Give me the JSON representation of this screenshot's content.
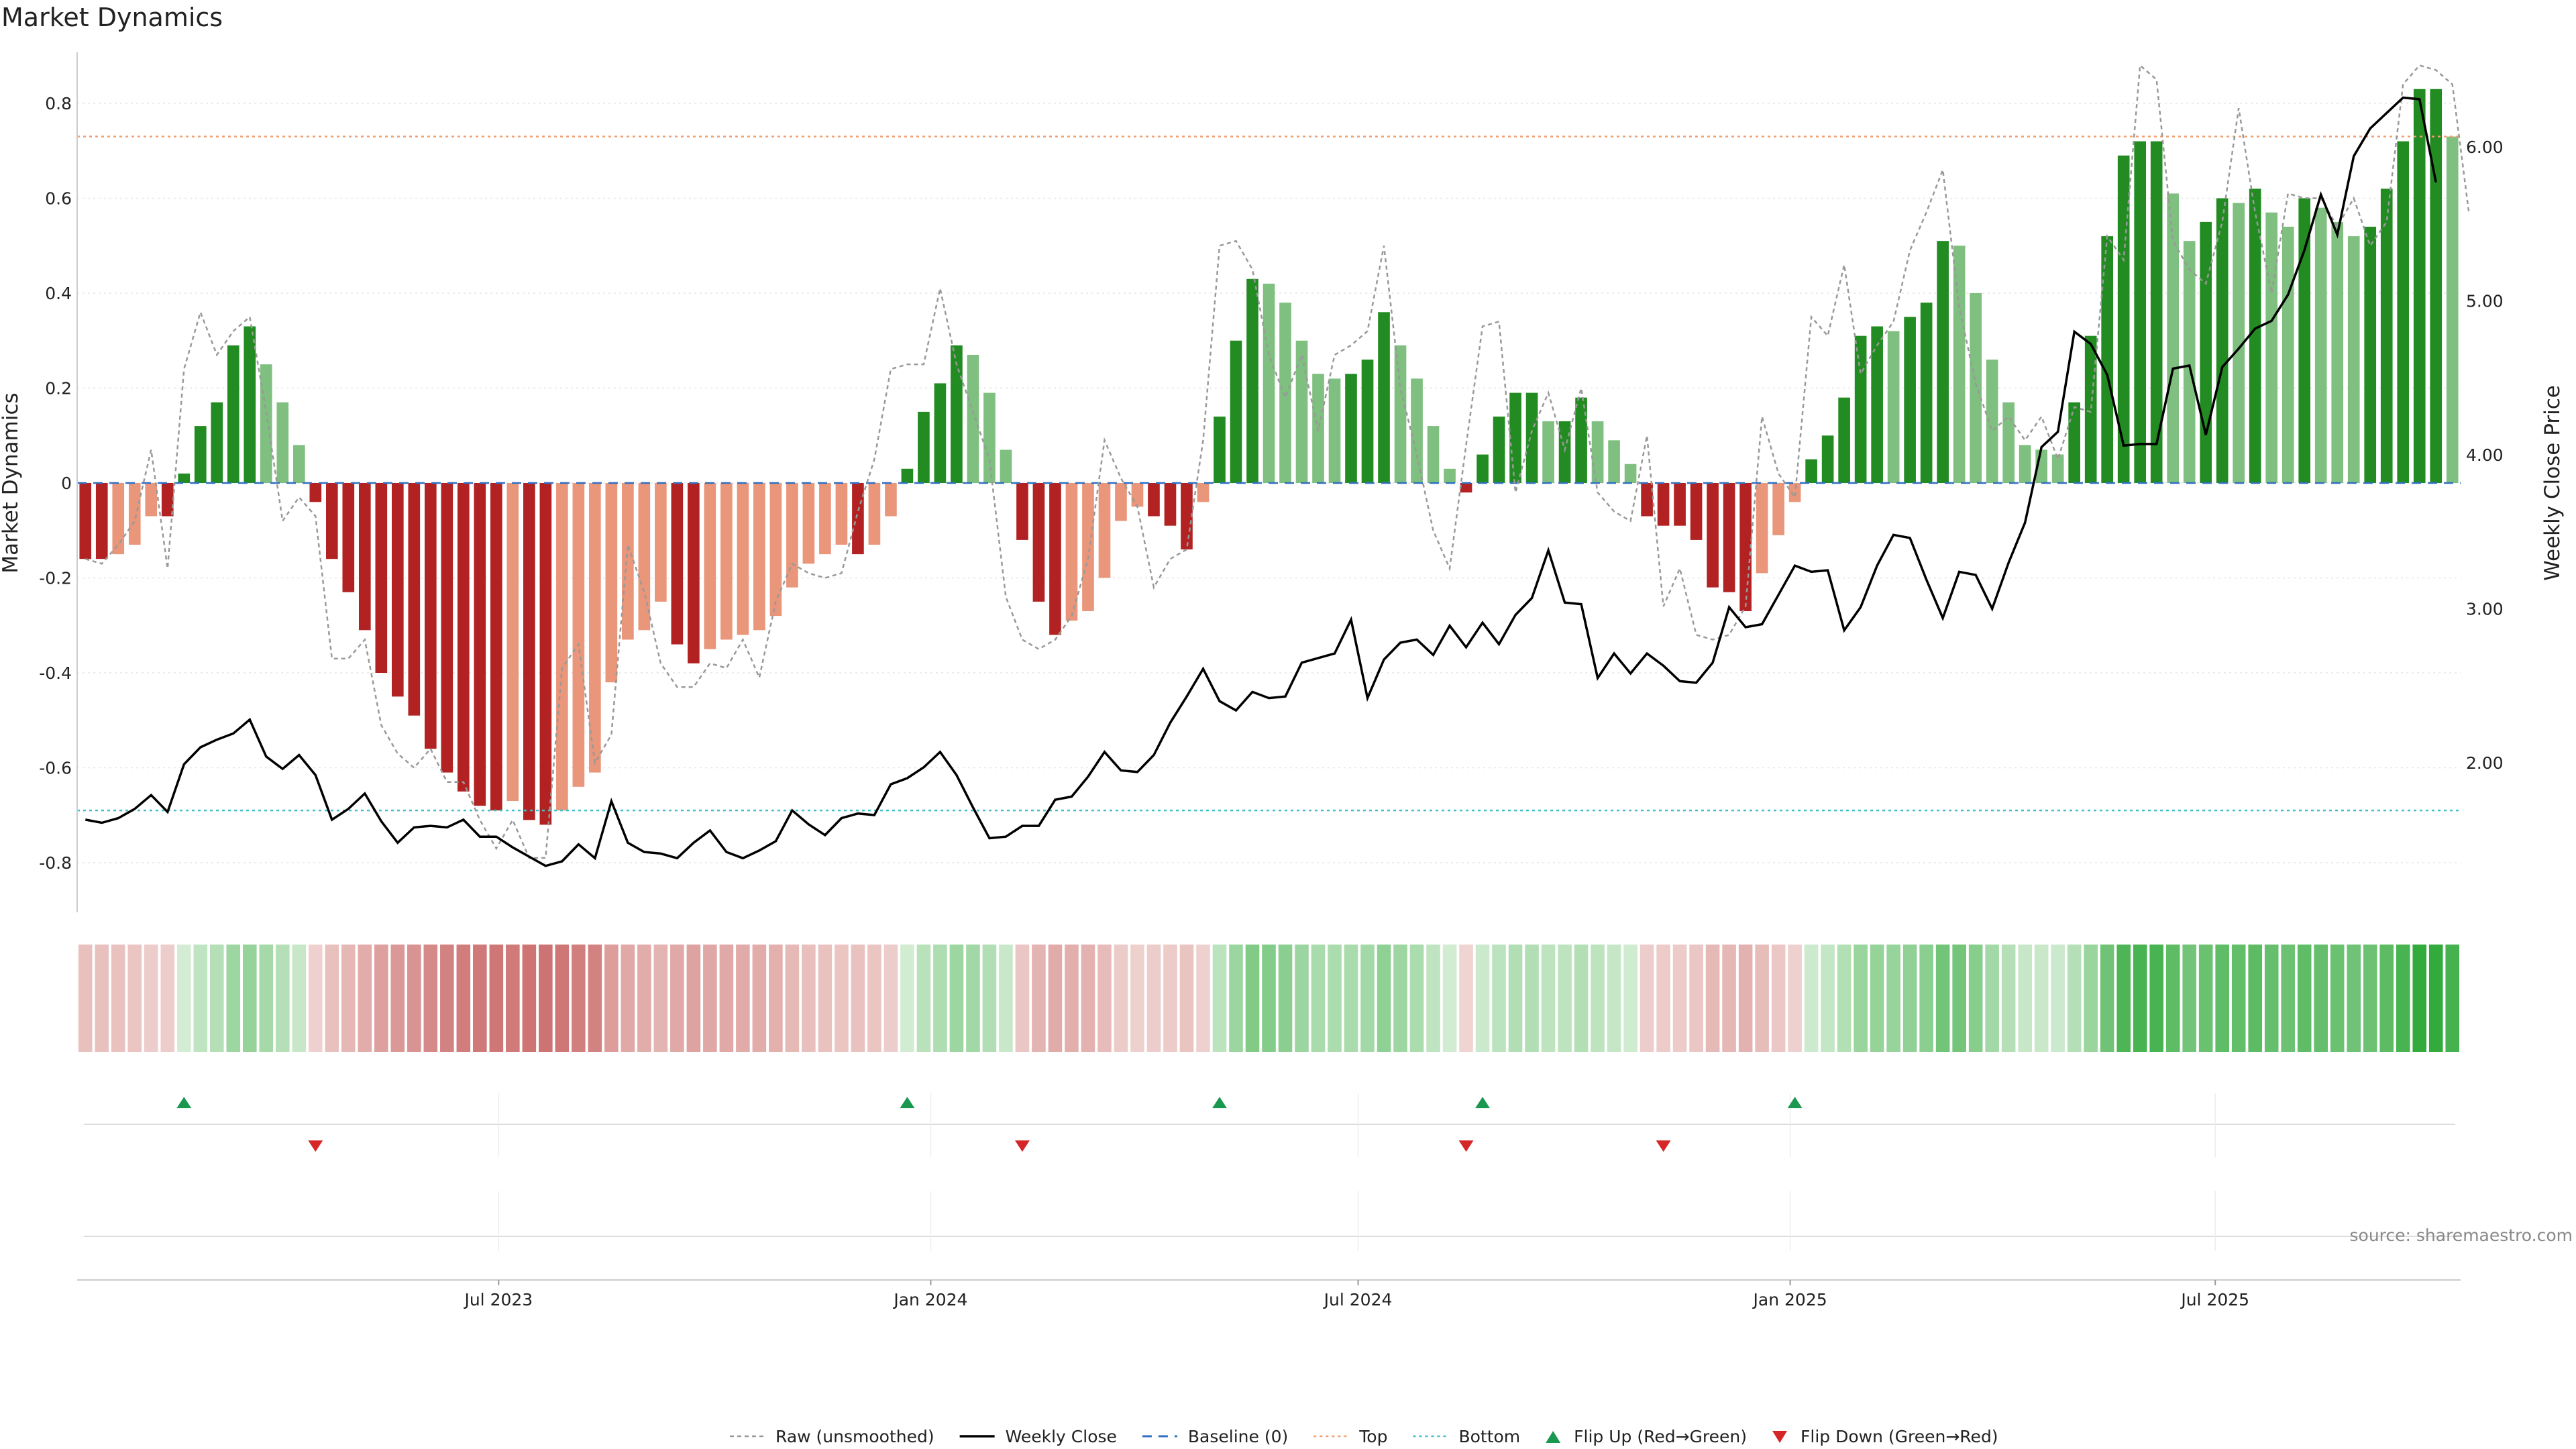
{
  "chart_data": {
    "type": "bar",
    "title": "Market Dynamics",
    "ylabel": "Market Dynamics",
    "ylabel_right": "Weekly Close Price",
    "ylim": [
      -0.9,
      0.9
    ],
    "ylim_right": [
      1.0,
      6.6
    ],
    "yticks": [
      "0.8",
      "0.6",
      "0.4",
      "0.2",
      "0",
      "-0.2",
      "-0.4",
      "-0.6",
      "-0.8"
    ],
    "yticks_right": [
      "6.00",
      "5.00",
      "4.00",
      "3.00",
      "2.00"
    ],
    "x_start": "2023-01-06",
    "x_tick_labels": [
      {
        "date": "2023-07-01",
        "label": "Jul 2023"
      },
      {
        "date": "2024-01-01",
        "label": "Jan 2024"
      },
      {
        "date": "2024-07-01",
        "label": "Jul 2024"
      },
      {
        "date": "2025-01-01",
        "label": "Jan 2025"
      },
      {
        "date": "2025-07-01",
        "label": "Jul 2025"
      }
    ],
    "top_threshold": 0.73,
    "bottom_threshold": -0.69,
    "baseline": 0,
    "bar_values": [
      -0.16,
      -0.16,
      -0.15,
      -0.13,
      -0.07,
      -0.07,
      0.02,
      0.12,
      0.17,
      0.29,
      0.33,
      0.25,
      0.17,
      0.08,
      -0.04,
      -0.16,
      -0.23,
      -0.31,
      -0.4,
      -0.45,
      -0.49,
      -0.56,
      -0.61,
      -0.65,
      -0.68,
      -0.69,
      -0.67,
      -0.71,
      -0.72,
      -0.69,
      -0.64,
      -0.61,
      -0.42,
      -0.33,
      -0.31,
      -0.25,
      -0.34,
      -0.38,
      -0.35,
      -0.33,
      -0.32,
      -0.31,
      -0.28,
      -0.22,
      -0.17,
      -0.15,
      -0.13,
      -0.15,
      -0.13,
      -0.07,
      0.03,
      0.15,
      0.21,
      0.29,
      0.27,
      0.19,
      0.07,
      -0.12,
      -0.25,
      -0.32,
      -0.29,
      -0.27,
      -0.2,
      -0.08,
      -0.05,
      -0.07,
      -0.09,
      -0.14,
      -0.04,
      0.14,
      0.3,
      0.43,
      0.42,
      0.38,
      0.3,
      0.23,
      0.22,
      0.23,
      0.26,
      0.36,
      0.29,
      0.22,
      0.12,
      0.03,
      -0.02,
      0.06,
      0.14,
      0.19,
      0.19,
      0.13,
      0.13,
      0.18,
      0.13,
      0.09,
      0.04,
      -0.07,
      -0.09,
      -0.09,
      -0.12,
      -0.22,
      -0.23,
      -0.27,
      -0.19,
      -0.11,
      -0.04,
      0.05,
      0.1,
      0.18,
      0.31,
      0.33,
      0.32,
      0.35,
      0.38,
      0.51,
      0.5,
      0.4,
      0.26,
      0.17,
      0.08,
      0.07,
      0.06,
      0.17,
      0.31,
      0.52,
      0.69,
      0.72,
      0.72,
      0.61,
      0.51,
      0.55,
      0.6,
      0.59,
      0.62,
      0.57,
      0.54,
      0.6,
      0.58,
      0.55,
      0.52,
      0.54,
      0.62,
      0.72,
      0.83,
      0.83,
      0.73
    ],
    "raw_values": [
      -0.16,
      -0.17,
      -0.13,
      -0.08,
      0.07,
      -0.18,
      0.24,
      0.36,
      0.27,
      0.32,
      0.35,
      0.15,
      -0.08,
      -0.03,
      -0.07,
      -0.37,
      -0.37,
      -0.33,
      -0.51,
      -0.57,
      -0.6,
      -0.56,
      -0.63,
      -0.63,
      -0.71,
      -0.77,
      -0.71,
      -0.79,
      -0.79,
      -0.39,
      -0.34,
      -0.59,
      -0.53,
      -0.13,
      -0.23,
      -0.38,
      -0.43,
      -0.43,
      -0.38,
      -0.39,
      -0.33,
      -0.41,
      -0.25,
      -0.17,
      -0.19,
      -0.2,
      -0.19,
      -0.06,
      0.05,
      0.24,
      0.25,
      0.25,
      0.41,
      0.25,
      0.15,
      0.05,
      -0.24,
      -0.33,
      -0.35,
      -0.33,
      -0.28,
      -0.16,
      0.09,
      0.01,
      -0.05,
      -0.22,
      -0.16,
      -0.14,
      0.09,
      0.5,
      0.51,
      0.45,
      0.27,
      0.18,
      0.27,
      0.11,
      0.27,
      0.29,
      0.32,
      0.5,
      0.2,
      0.06,
      -0.1,
      -0.18,
      0.08,
      0.33,
      0.34,
      -0.02,
      0.11,
      0.19,
      0.07,
      0.2,
      -0.02,
      -0.06,
      -0.08,
      0.1,
      -0.26,
      -0.18,
      -0.32,
      -0.33,
      -0.32,
      -0.26,
      0.14,
      0.02,
      -0.03,
      0.35,
      0.31,
      0.46,
      0.23,
      0.29,
      0.34,
      0.49,
      0.57,
      0.66,
      0.37,
      0.21,
      0.11,
      0.14,
      0.09,
      0.14,
      0.05,
      0.16,
      0.15,
      0.52,
      0.47,
      0.88,
      0.85,
      0.51,
      0.45,
      0.42,
      0.55,
      0.79,
      0.57,
      0.4,
      0.61,
      0.6,
      0.6,
      0.54,
      0.6,
      0.5,
      0.55,
      0.84,
      0.88,
      0.87,
      0.84,
      0.57
    ],
    "weekly_close": [
      1.63,
      1.61,
      1.64,
      1.7,
      1.79,
      1.68,
      1.99,
      2.1,
      2.15,
      2.19,
      2.28,
      2.04,
      1.96,
      2.05,
      1.92,
      1.63,
      1.7,
      1.8,
      1.62,
      1.48,
      1.58,
      1.59,
      1.58,
      1.63,
      1.52,
      1.52,
      1.45,
      1.39,
      1.33,
      1.36,
      1.47,
      1.38,
      1.75,
      1.48,
      1.42,
      1.41,
      1.38,
      1.48,
      1.56,
      1.42,
      1.38,
      1.43,
      1.49,
      1.69,
      1.6,
      1.53,
      1.64,
      1.67,
      1.66,
      1.86,
      1.9,
      1.97,
      2.07,
      1.92,
      1.71,
      1.51,
      1.52,
      1.59,
      1.59,
      1.76,
      1.78,
      1.91,
      2.07,
      1.95,
      1.94,
      2.05,
      2.26,
      2.43,
      2.61,
      2.4,
      2.34,
      2.46,
      2.42,
      2.43,
      2.65,
      2.68,
      2.71,
      2.93,
      2.42,
      2.67,
      2.78,
      2.8,
      2.7,
      2.89,
      2.75,
      2.91,
      2.77,
      2.96,
      3.07,
      3.38,
      3.04,
      3.03,
      2.55,
      2.71,
      2.58,
      2.71,
      2.63,
      2.53,
      2.52,
      2.65,
      3.01,
      2.88,
      2.9,
      3.09,
      3.28,
      3.24,
      3.25,
      2.86,
      3.01,
      3.28,
      3.48,
      3.46,
      3.19,
      2.94,
      3.24,
      3.22,
      3.0,
      3.3,
      3.56,
      4.05,
      4.15,
      4.8,
      4.72,
      4.52,
      4.06,
      4.07,
      4.07,
      4.56,
      4.58,
      4.13,
      4.57,
      4.69,
      4.82,
      4.87,
      5.04,
      5.33,
      5.69,
      5.43,
      5.94,
      6.12,
      6.22,
      6.32,
      6.31,
      5.77
    ],
    "flip_up_indices": [
      6,
      50,
      69,
      85,
      104
    ],
    "flip_down_indices": [
      14,
      57,
      84,
      96
    ],
    "colors": {
      "strong_green": "#228b22",
      "light_green": "#7fbf7f",
      "strong_red": "#b22222",
      "light_red": "#e9967a",
      "top_line": "#f0a070",
      "bottom_line": "#40c0c8",
      "baseline": "#3070c0",
      "raw_line": "#999999",
      "close_line": "#000000",
      "flip_up": "#1a9850",
      "flip_down": "#d62728"
    },
    "legend": [
      {
        "label": "Raw (unsmoothed)",
        "style": "raw"
      },
      {
        "label": "Weekly Close",
        "style": "close"
      },
      {
        "label": "Baseline (0)",
        "style": "baseline"
      },
      {
        "label": "Top",
        "style": "top"
      },
      {
        "label": "Bottom",
        "style": "bottom"
      },
      {
        "label": "Flip Up (Red→Green)",
        "style": "up"
      },
      {
        "label": "Flip Down (Green→Red)",
        "style": "down"
      }
    ],
    "source": "source: sharemaestro.com"
  }
}
